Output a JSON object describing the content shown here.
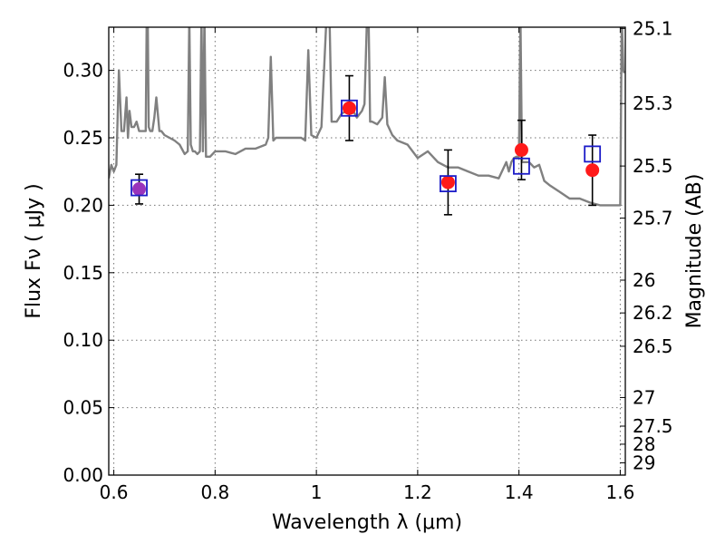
{
  "chart_data": {
    "type": "scatter",
    "xlabel": "Wavelength  λ (μm)",
    "ylabel": "Flux  Fν  ( μJy )",
    "ylabel_right": "Magnitude (AB)",
    "xlim": [
      0.59,
      1.61
    ],
    "ylim": [
      0.0,
      0.332
    ],
    "grid": true,
    "x_ticks": [
      {
        "value": 0.6,
        "label": "0.6"
      },
      {
        "value": 0.8,
        "label": "0.8"
      },
      {
        "value": 1.0,
        "label": "1"
      },
      {
        "value": 1.2,
        "label": "1.2"
      },
      {
        "value": 1.4,
        "label": "1.4"
      },
      {
        "value": 1.6,
        "label": "1.6"
      }
    ],
    "y_ticks": [
      {
        "value": 0.0,
        "label": "0.00"
      },
      {
        "value": 0.05,
        "label": "0.05"
      },
      {
        "value": 0.1,
        "label": "0.10"
      },
      {
        "value": 0.15,
        "label": "0.15"
      },
      {
        "value": 0.2,
        "label": "0.20"
      },
      {
        "value": 0.25,
        "label": "0.25"
      },
      {
        "value": 0.3,
        "label": "0.30"
      }
    ],
    "mag_ticks": [
      {
        "flux": 0.3311,
        "label": "25.1"
      },
      {
        "flux": 0.2754,
        "label": "25.3"
      },
      {
        "flux": 0.2291,
        "label": "25.5"
      },
      {
        "flux": 0.1905,
        "label": "25.7"
      },
      {
        "flux": 0.1445,
        "label": "26"
      },
      {
        "flux": 0.1202,
        "label": "26.2"
      },
      {
        "flux": 0.0955,
        "label": "26.5"
      },
      {
        "flux": 0.0575,
        "label": "27"
      },
      {
        "flux": 0.0363,
        "label": "27.5"
      },
      {
        "flux": 0.0229,
        "label": "28"
      },
      {
        "flux": 0.0091,
        "label": "29"
      }
    ],
    "series": [
      {
        "kind": "line",
        "color": "#808080",
        "x": [
          0.59,
          0.595,
          0.6,
          0.605,
          0.61,
          0.615,
          0.62,
          0.625,
          0.628,
          0.631,
          0.635,
          0.64,
          0.645,
          0.65,
          0.655,
          0.66,
          0.663,
          0.665,
          0.667,
          0.669,
          0.672,
          0.676,
          0.68,
          0.684,
          0.69,
          0.694,
          0.7,
          0.71,
          0.72,
          0.73,
          0.74,
          0.746,
          0.749,
          0.752,
          0.756,
          0.76,
          0.765,
          0.77,
          0.773,
          0.776,
          0.779,
          0.782,
          0.79,
          0.8,
          0.82,
          0.84,
          0.86,
          0.88,
          0.9,
          0.905,
          0.91,
          0.915,
          0.92,
          0.94,
          0.96,
          0.97,
          0.978,
          0.984,
          0.99,
          1.0,
          1.01,
          1.02,
          1.026,
          1.03,
          1.04,
          1.05,
          1.06,
          1.07,
          1.08,
          1.09,
          1.095,
          1.1,
          1.103,
          1.106,
          1.11,
          1.12,
          1.13,
          1.135,
          1.14,
          1.15,
          1.16,
          1.18,
          1.2,
          1.22,
          1.24,
          1.26,
          1.28,
          1.3,
          1.32,
          1.34,
          1.36,
          1.375,
          1.38,
          1.385,
          1.39,
          1.395,
          1.4,
          1.403,
          1.406,
          1.41,
          1.42,
          1.43,
          1.44,
          1.45,
          1.46,
          1.48,
          1.5,
          1.52,
          1.54,
          1.56,
          1.58,
          1.59,
          1.595,
          1.6,
          1.603,
          1.606,
          1.608
        ],
        "y": [
          0.22,
          0.23,
          0.225,
          0.23,
          0.3,
          0.255,
          0.255,
          0.28,
          0.25,
          0.27,
          0.258,
          0.258,
          0.262,
          0.255,
          0.255,
          0.255,
          0.255,
          0.34,
          0.34,
          0.258,
          0.255,
          0.255,
          0.265,
          0.28,
          0.255,
          0.255,
          0.252,
          0.25,
          0.248,
          0.245,
          0.238,
          0.24,
          0.34,
          0.245,
          0.24,
          0.24,
          0.238,
          0.24,
          0.34,
          0.24,
          0.34,
          0.236,
          0.236,
          0.24,
          0.24,
          0.238,
          0.242,
          0.242,
          0.245,
          0.25,
          0.31,
          0.248,
          0.25,
          0.25,
          0.25,
          0.25,
          0.248,
          0.315,
          0.252,
          0.25,
          0.258,
          0.34,
          0.34,
          0.262,
          0.262,
          0.268,
          0.27,
          0.272,
          0.265,
          0.27,
          0.275,
          0.34,
          0.34,
          0.262,
          0.262,
          0.26,
          0.265,
          0.295,
          0.26,
          0.252,
          0.248,
          0.245,
          0.235,
          0.24,
          0.232,
          0.228,
          0.228,
          0.225,
          0.222,
          0.222,
          0.22,
          0.232,
          0.225,
          0.232,
          0.235,
          0.236,
          0.236,
          0.34,
          0.232,
          0.232,
          0.232,
          0.228,
          0.23,
          0.218,
          0.215,
          0.21,
          0.205,
          0.205,
          0.202,
          0.2,
          0.2,
          0.2,
          0.2,
          0.2,
          0.34,
          0.3,
          0.298
        ]
      },
      {
        "kind": "points",
        "marker": "circle",
        "color": "#ff1a1a",
        "points": [
          {
            "x": 0.65,
            "y": 0.212,
            "yerr": 0.011,
            "color": "#9933bb"
          },
          {
            "x": 1.065,
            "y": 0.272,
            "yerr": 0.024
          },
          {
            "x": 1.26,
            "y": 0.217,
            "yerr": 0.024
          },
          {
            "x": 1.405,
            "y": 0.241,
            "yerr": 0.022
          },
          {
            "x": 1.545,
            "y": 0.226,
            "yerr": 0.026
          }
        ]
      },
      {
        "kind": "points",
        "marker": "open-square",
        "color": "#1c1cc8",
        "points": [
          {
            "x": 0.65,
            "y": 0.213
          },
          {
            "x": 1.065,
            "y": 0.272
          },
          {
            "x": 1.26,
            "y": 0.216
          },
          {
            "x": 1.405,
            "y": 0.229
          },
          {
            "x": 1.545,
            "y": 0.238
          }
        ]
      }
    ]
  }
}
